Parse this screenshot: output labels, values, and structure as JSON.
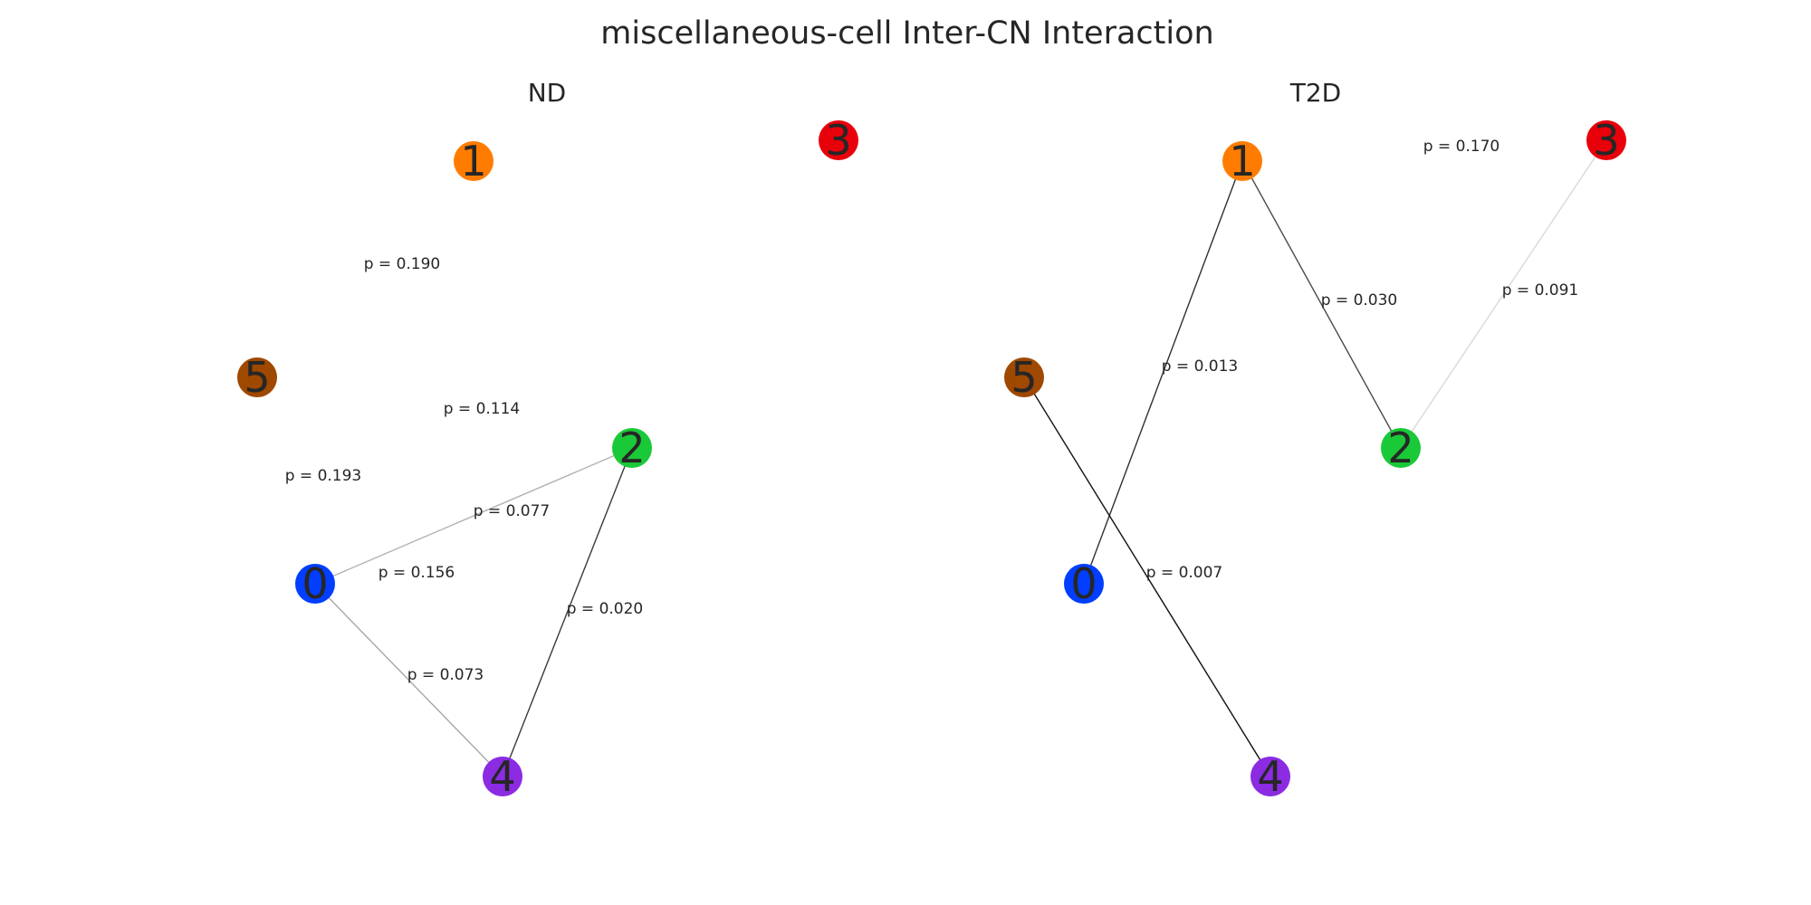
{
  "title": "miscellaneous-cell Inter-CN Interaction",
  "panels": [
    {
      "title": "ND",
      "nodes": [
        {
          "id": "0",
          "label": "0",
          "color": "#023eff"
        },
        {
          "id": "1",
          "label": "1",
          "color": "#ff7c00"
        },
        {
          "id": "2",
          "label": "2",
          "color": "#1ac938"
        },
        {
          "id": "3",
          "label": "3",
          "color": "#e8000b"
        },
        {
          "id": "4",
          "label": "4",
          "color": "#8b2be2"
        },
        {
          "id": "5",
          "label": "5",
          "color": "#9f4800"
        }
      ],
      "edges": [
        {
          "source": "0",
          "target": "2",
          "label": "p = 0.077",
          "color": "#b3b3b3"
        },
        {
          "source": "0",
          "target": "4",
          "label": "p = 0.073",
          "color": "#a6a6a6"
        },
        {
          "source": "2",
          "target": "4",
          "label": "p = 0.020",
          "color": "#3a3a3a"
        },
        {
          "source": "1",
          "target": "5",
          "label": "p = 0.190",
          "color": "#ffffff"
        },
        {
          "source": "1",
          "target": "0",
          "label": "p = 0.114",
          "color": "#ffffff"
        },
        {
          "source": "5",
          "target": "2",
          "label": "p = 0.156",
          "color": "#ffffff"
        },
        {
          "source": "5",
          "target": "0",
          "label": "p = 0.193",
          "color": "#ffffff"
        }
      ]
    },
    {
      "title": "T2D",
      "nodes": [
        {
          "id": "0",
          "label": "0",
          "color": "#023eff"
        },
        {
          "id": "1",
          "label": "1",
          "color": "#ff7c00"
        },
        {
          "id": "2",
          "label": "2",
          "color": "#1ac938"
        },
        {
          "id": "3",
          "label": "3",
          "color": "#e8000b"
        },
        {
          "id": "4",
          "label": "4",
          "color": "#8b2be2"
        },
        {
          "id": "5",
          "label": "5",
          "color": "#9f4800"
        }
      ],
      "edges": [
        {
          "source": "1",
          "target": "0",
          "label": "p = 0.013",
          "color": "#303030"
        },
        {
          "source": "1",
          "target": "2",
          "label": "p = 0.030",
          "color": "#4a4a4a"
        },
        {
          "source": "2",
          "target": "3",
          "label": "p = 0.091",
          "color": "#d8d8d8"
        },
        {
          "source": "5",
          "target": "4",
          "label": "p = 0.007",
          "color": "#111111"
        },
        {
          "source": "1",
          "target": "3",
          "label": "p = 0.170",
          "color": "#ffffff"
        }
      ]
    }
  ]
}
